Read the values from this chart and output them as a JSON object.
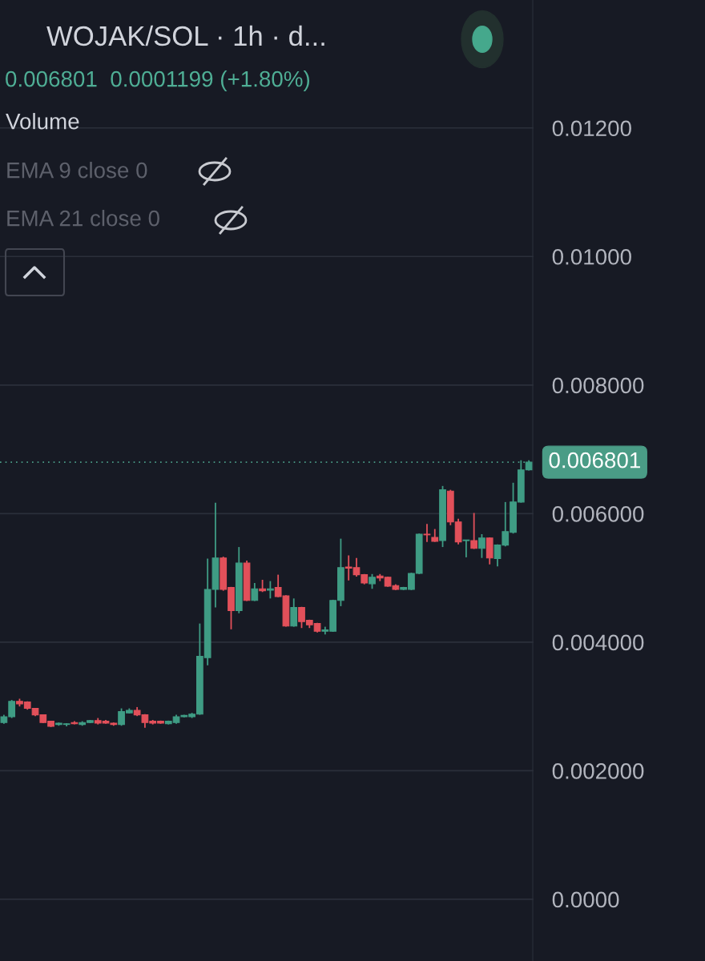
{
  "chart_data": {
    "type": "candlestick",
    "title": "WOJAK/SOL · 1h · d...",
    "subtitle": "0.006801  0.0001199 (+1.80%)",
    "annotations": [
      "Volume",
      "EMA 9 close 0",
      "EMA 21 close 0"
    ],
    "categories": [
      null,
      null,
      null,
      null,
      null,
      null,
      null,
      null,
      null,
      null,
      null,
      null,
      null,
      null,
      null,
      null,
      null,
      null,
      null,
      null,
      null,
      null,
      null,
      null,
      null,
      null,
      null,
      null,
      null,
      null,
      null,
      null,
      null,
      null,
      null,
      null,
      null,
      null,
      null,
      null,
      null,
      null,
      null,
      null,
      null,
      null,
      null,
      null,
      null,
      null,
      null,
      null,
      null,
      null,
      null,
      null,
      null,
      null,
      null,
      null,
      null,
      null,
      null,
      null,
      null,
      null,
      null,
      null
    ],
    "ohlc": [
      [
        0.00275,
        0.00287,
        0.00273,
        0.00284
      ],
      [
        0.00284,
        0.0031,
        0.00282,
        0.00308
      ],
      [
        0.00308,
        0.00312,
        0.003,
        0.00304
      ],
      [
        0.00307,
        0.00308,
        0.00295,
        0.00297
      ],
      [
        0.00297,
        0.00297,
        0.00285,
        0.00287
      ],
      [
        0.00287,
        0.00287,
        0.00274,
        0.00275
      ],
      [
        0.00277,
        0.00277,
        0.00268,
        0.00269
      ],
      [
        0.00272,
        0.00275,
        0.0027,
        0.00274
      ],
      [
        0.00272,
        0.00274,
        0.00269,
        0.00273
      ],
      [
        0.00275,
        0.00277,
        0.00272,
        0.00273
      ],
      [
        0.00272,
        0.00277,
        0.0027,
        0.00275
      ],
      [
        0.00275,
        0.00279,
        0.00274,
        0.00278
      ],
      [
        0.00278,
        0.00282,
        0.00272,
        0.00274
      ],
      [
        0.00277,
        0.00279,
        0.00273,
        0.00274
      ],
      [
        0.00274,
        0.00275,
        0.0027,
        0.00272
      ],
      [
        0.00272,
        0.00297,
        0.0027,
        0.00292
      ],
      [
        0.0029,
        0.00297,
        0.00289,
        0.00294
      ],
      [
        0.00294,
        0.00299,
        0.00285,
        0.00287
      ],
      [
        0.00287,
        0.00288,
        0.00267,
        0.00275
      ],
      [
        0.00277,
        0.00279,
        0.00272,
        0.00274
      ],
      [
        0.00277,
        0.00278,
        0.00273,
        0.00274
      ],
      [
        0.00273,
        0.00278,
        0.00272,
        0.00277
      ],
      [
        0.00275,
        0.00287,
        0.00273,
        0.00284
      ],
      [
        0.00284,
        0.00287,
        0.00283,
        0.00286
      ],
      [
        0.00284,
        0.0029,
        0.00282,
        0.00288
      ],
      [
        0.00288,
        0.00429,
        0.00287,
        0.00378
      ],
      [
        0.00376,
        0.0053,
        0.00364,
        0.00482
      ],
      [
        0.00482,
        0.00617,
        0.00454,
        0.00531
      ],
      [
        0.00531,
        0.00533,
        0.0048,
        0.00482
      ],
      [
        0.00485,
        0.00486,
        0.0042,
        0.00449
      ],
      [
        0.00449,
        0.00548,
        0.00445,
        0.00523
      ],
      [
        0.00523,
        0.00527,
        0.00464,
        0.00465
      ],
      [
        0.00465,
        0.00492,
        0.00464,
        0.00483
      ],
      [
        0.00483,
        0.00497,
        0.00478,
        0.0048
      ],
      [
        0.00481,
        0.00495,
        0.00468,
        0.00483
      ],
      [
        0.00485,
        0.00505,
        0.0047,
        0.00471
      ],
      [
        0.00472,
        0.00473,
        0.00424,
        0.00425
      ],
      [
        0.00425,
        0.00468,
        0.00424,
        0.00454
      ],
      [
        0.00454,
        0.00455,
        0.00422,
        0.00432
      ],
      [
        0.00434,
        0.00435,
        0.00422,
        0.00427
      ],
      [
        0.00429,
        0.0043,
        0.00415,
        0.00417
      ],
      [
        0.00417,
        0.00424,
        0.00412,
        0.00419
      ],
      [
        0.00417,
        0.00466,
        0.00416,
        0.00465
      ],
      [
        0.00465,
        0.00561,
        0.00456,
        0.00516
      ],
      [
        0.00517,
        0.00535,
        0.00496,
        0.00515
      ],
      [
        0.00516,
        0.00531,
        0.00502,
        0.00505
      ],
      [
        0.00505,
        0.00506,
        0.0049,
        0.00492
      ],
      [
        0.00491,
        0.00506,
        0.00483,
        0.00501
      ],
      [
        0.00503,
        0.00506,
        0.00495,
        0.005
      ],
      [
        0.00501,
        0.00502,
        0.00486,
        0.00487
      ],
      [
        0.00488,
        0.0049,
        0.00481,
        0.00482
      ],
      [
        0.00482,
        0.00486,
        0.00481,
        0.00485
      ],
      [
        0.00482,
        0.00508,
        0.00481,
        0.00507
      ],
      [
        0.00507,
        0.00569,
        0.00506,
        0.00568
      ],
      [
        0.00568,
        0.00584,
        0.00556,
        0.00567
      ],
      [
        0.00563,
        0.00576,
        0.00556,
        0.00557
      ],
      [
        0.00558,
        0.00643,
        0.00548,
        0.00637
      ],
      [
        0.00635,
        0.00637,
        0.00582,
        0.00587
      ],
      [
        0.00587,
        0.00592,
        0.00552,
        0.00556
      ],
      [
        0.00558,
        0.00559,
        0.00532,
        0.00559
      ],
      [
        0.00558,
        0.00601,
        0.00545,
        0.00546
      ],
      [
        0.00546,
        0.00568,
        0.00531,
        0.00562
      ],
      [
        0.00562,
        0.00563,
        0.00521,
        0.00531
      ],
      [
        0.0053,
        0.00552,
        0.00518,
        0.00551
      ],
      [
        0.00551,
        0.00618,
        0.00549,
        0.00572
      ],
      [
        0.00571,
        0.00648,
        0.00569,
        0.00618
      ],
      [
        0.00618,
        0.00683,
        0.00617,
        0.00668
      ],
      [
        0.006681,
        0.00683,
        0.00667,
        0.006801
      ]
    ],
    "colors": [
      "#3f9c84",
      "#3f9c84",
      "#e2505a",
      "#e2505a",
      "#e2505a",
      "#e2505a",
      "#e2505a",
      "#3f9c84",
      "#3f9c84",
      "#e2505a",
      "#3f9c84",
      "#3f9c84",
      "#e2505a",
      "#e2505a",
      "#e2505a",
      "#3f9c84",
      "#3f9c84",
      "#e2505a",
      "#e2505a",
      "#e2505a",
      "#e2505a",
      "#3f9c84",
      "#3f9c84",
      "#3f9c84",
      "#3f9c84",
      "#3f9c84",
      "#3f9c84",
      "#3f9c84",
      "#e2505a",
      "#e2505a",
      "#3f9c84",
      "#e2505a",
      "#3f9c84",
      "#e2505a",
      "#3f9c84",
      "#e2505a",
      "#e2505a",
      "#3f9c84",
      "#e2505a",
      "#e2505a",
      "#e2505a",
      "#3f9c84",
      "#3f9c84",
      "#3f9c84",
      "#e2505a",
      "#e2505a",
      "#e2505a",
      "#3f9c84",
      "#e2505a",
      "#e2505a",
      "#e2505a",
      "#3f9c84",
      "#3f9c84",
      "#3f9c84",
      "#e2505a",
      "#e2505a",
      "#3f9c84",
      "#e2505a",
      "#e2505a",
      "#3f9c84",
      "#e2505a",
      "#3f9c84",
      "#e2505a",
      "#3f9c84",
      "#3f9c84",
      "#3f9c84",
      "#3f9c84",
      "#3f9c84"
    ],
    "ylim": [
      -0.00096,
      0.01399
    ],
    "yticks": [
      {
        "value": 0,
        "label": "0.0000"
      },
      {
        "value": 0.002,
        "label": "0.002000"
      },
      {
        "value": 0.004,
        "label": "0.004000"
      },
      {
        "value": 0.006,
        "label": "0.006000"
      },
      {
        "value": 0.008,
        "label": "0.008000"
      },
      {
        "value": 0.01,
        "label": "0.01000"
      },
      {
        "value": 0.012,
        "label": "0.01200"
      }
    ],
    "tick_labels": "y",
    "grid": "y",
    "ref_lines": [
      {
        "axis": "y",
        "value": 0.006801,
        "label": "0.006801",
        "color": "#4a9c86",
        "line_style": "dotted"
      }
    ]
  }
}
